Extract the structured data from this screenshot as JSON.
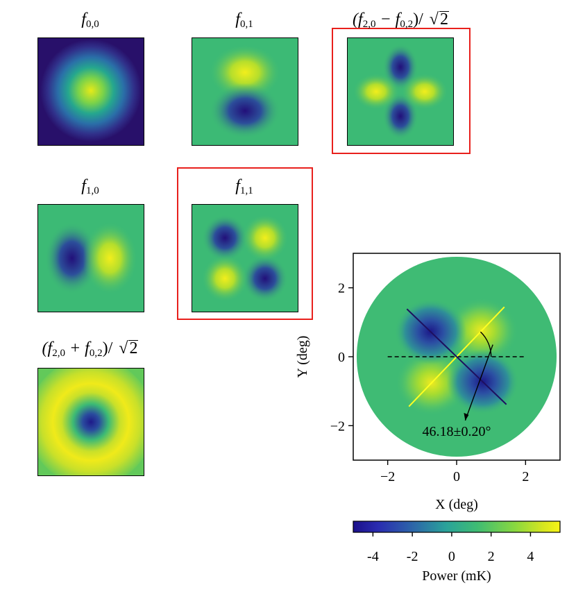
{
  "basis_panels": [
    {
      "key": "f00",
      "title_var": "f",
      "title_sub": "0,0",
      "title_prefix": "",
      "title_suffix": "",
      "highlighted": false
    },
    {
      "key": "f01",
      "title_var": "f",
      "title_sub": "0,1",
      "title_prefix": "",
      "title_suffix": "",
      "highlighted": false
    },
    {
      "key": "f20m02",
      "title_prefix": "(f",
      "title_sub": "2,0",
      "title_mid": " − f",
      "title_sub2": "0,2",
      "title_suffix": ")/ ",
      "sqrt_arg": "2",
      "highlighted": true
    },
    {
      "key": "f10",
      "title_var": "f",
      "title_sub": "1,0",
      "highlighted": false
    },
    {
      "key": "f11",
      "title_var": "f",
      "title_sub": "1,1",
      "highlighted": true
    },
    {
      "key": "f20p02",
      "title_prefix": "(f",
      "title_sub": "2,0",
      "title_mid": " + f",
      "title_sub2": "0,2",
      "title_suffix": ")/ ",
      "sqrt_arg": "2",
      "highlighted": false
    }
  ],
  "chart_data": {
    "type": "heatmap",
    "xlabel": "X (deg)",
    "ylabel": "Y (deg)",
    "xlim": [
      -3,
      3
    ],
    "ylim": [
      -3,
      3
    ],
    "xticks": [
      -2,
      0,
      2
    ],
    "yticks": [
      -2,
      0,
      2
    ],
    "xtick_labels": [
      "−2",
      "0",
      "2"
    ],
    "ytick_labels": [
      "−2",
      "0",
      "2"
    ],
    "beam_radius_deg": 2.9,
    "rotation_angle_deg": 46.18,
    "rotation_annotation": "46.18±0.20°",
    "line_length_deg": 2.0,
    "colorbar": {
      "label": "Power (mK)",
      "range": [
        -5,
        5.5
      ],
      "ticks": [
        -4,
        -2,
        0,
        2,
        4
      ],
      "tick_labels": [
        "-4",
        "-2",
        "0",
        "2",
        "4"
      ],
      "colormap": "viridis-like"
    }
  },
  "colors": {
    "highlight_box": "#e8201c",
    "positive_axis_line": "#ffff22",
    "negative_axis_line": "#1e1060"
  }
}
